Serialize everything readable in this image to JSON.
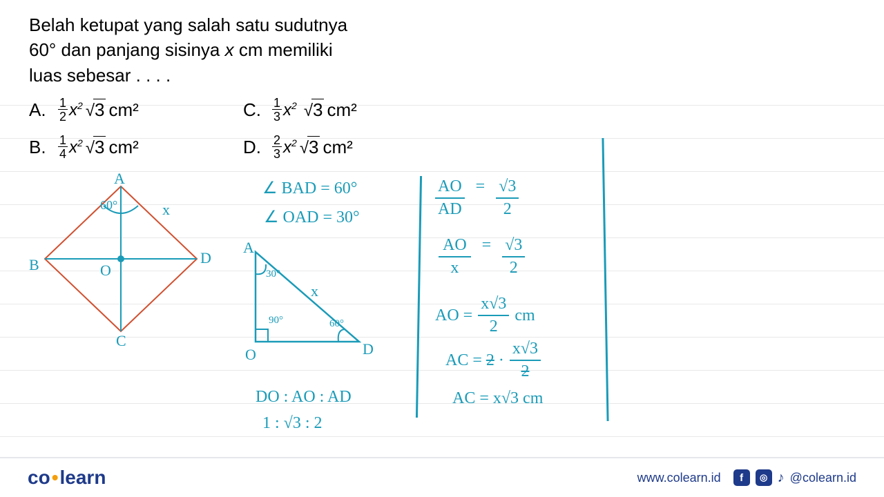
{
  "question": {
    "line1": "Belah ketupat yang salah satu sudutnya",
    "line2_a": "60° dan panjang sisinya ",
    "line2_var": "x",
    "line2_b": " cm memiliki",
    "line3": "luas sebesar . . . ."
  },
  "options": {
    "A": {
      "label": "A.",
      "num": "1",
      "den": "2",
      "var": "x",
      "rad": "3",
      "unit": "cm²"
    },
    "C": {
      "label": "C.",
      "num": "1",
      "den": "3",
      "var": "x",
      "rad": "3",
      "unit": "cm²"
    },
    "B": {
      "label": "B.",
      "num": "1",
      "den": "4",
      "var": "x",
      "rad": "3",
      "unit": "cm²"
    },
    "D": {
      "label": "D.",
      "num": "2",
      "den": "3",
      "var": "x",
      "rad": "3",
      "unit": "cm²"
    }
  },
  "handwriting": {
    "bad": "∠ BAD = 60°",
    "oad": "∠ OAD = 30°",
    "ratio_label": "DO : AO : AD",
    "ratio_val": "1 : √3 : 2",
    "aoad_frac_top": "AO",
    "aoad_frac_bot": "AD",
    "eq": "=",
    "root3_2_top": "√3",
    "root3_2_bot": "2",
    "aox_top": "AO",
    "aox_bot": "x",
    "ao_res": "AO =",
    "ao_res_top": "x√3",
    "ao_res_bot": "2",
    "cm": "cm",
    "ac1": "AC = 2 ·",
    "ac1_top": "x√3",
    "ac1_bot": "2",
    "ac2": "AC = x√3  cm",
    "rhombus": {
      "A": "A",
      "B": "B",
      "C": "C",
      "D": "D",
      "O": "O",
      "angle": "60°",
      "side": "x"
    },
    "triangle": {
      "A": "A",
      "O": "O",
      "D": "D",
      "a30": "30°",
      "a90": "90°",
      "a60": "60°",
      "side": "x"
    }
  },
  "footer": {
    "logo_co": "co",
    "logo_learn": "learn",
    "url": "www.colearn.id",
    "handle": "@colearn.id"
  },
  "colors": {
    "ink": "#1a9bb8",
    "rhombus": "#d05030",
    "rule": "#e8e8e8",
    "brand": "#1e3a8a"
  },
  "ruled_lines_top": [
    152,
    200,
    248,
    296,
    344,
    392,
    440,
    488,
    536,
    584,
    632
  ]
}
